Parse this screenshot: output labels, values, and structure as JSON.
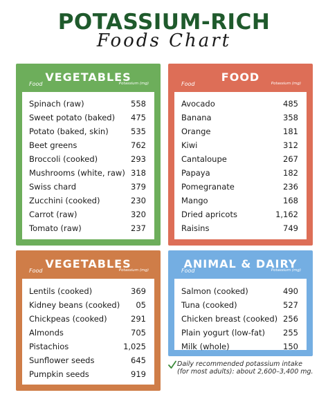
{
  "title": {
    "main": "POTASSIUM-RICH",
    "sub": "Foods Chart"
  },
  "sections": {
    "vegetables1": {
      "heading": "VEGETABLES",
      "col_food": "Food",
      "col_potassium": "Potassium (mg)",
      "rows": [
        {
          "food": "Spinach (raw)",
          "mg": "558"
        },
        {
          "food": "Sweet potato (baked)",
          "mg": "475"
        },
        {
          "food": "Potato (baked, skin)",
          "mg": "535"
        },
        {
          "food": "Beet greens",
          "mg": "762"
        },
        {
          "food": "Broccoli (cooked)",
          "mg": "293"
        },
        {
          "food": "Mushrooms (white, raw)",
          "mg": "318"
        },
        {
          "food": "Swiss chard",
          "mg": "379"
        },
        {
          "food": "Zucchini (cooked)",
          "mg": "230"
        },
        {
          "food": "Carrot (raw)",
          "mg": "320"
        },
        {
          "food": "Tomato (raw)",
          "mg": "237"
        }
      ]
    },
    "food": {
      "heading": "FOOD",
      "col_food": "Food",
      "col_potassium": "Potassium (mg)",
      "rows": [
        {
          "food": "Avocado",
          "mg": "485"
        },
        {
          "food": "Banana",
          "mg": "358"
        },
        {
          "food": "Orange",
          "mg": "181"
        },
        {
          "food": "Kiwi",
          "mg": "312"
        },
        {
          "food": "Cantaloupe",
          "mg": "267"
        },
        {
          "food": "Papaya",
          "mg": "182"
        },
        {
          "food": "Pomegranate",
          "mg": "236"
        },
        {
          "food": "Mango",
          "mg": "168"
        },
        {
          "food": "Dried apricots",
          "mg": "1,162"
        },
        {
          "food": "Raisins",
          "mg": "749"
        }
      ]
    },
    "vegetables2": {
      "heading": "VEGETABLES",
      "col_food": "Food",
      "col_potassium": "Potassium (mg)",
      "rows": [
        {
          "food": "Lentils (cooked)",
          "mg": "369"
        },
        {
          "food": "Kidney beans (cooked)",
          "mg": "05"
        },
        {
          "food": "Chickpeas (cooked)",
          "mg": "291"
        },
        {
          "food": "Almonds",
          "mg": "705"
        },
        {
          "food": "Pistachios",
          "mg": "1,025"
        },
        {
          "food": "Sunflower seeds",
          "mg": "645"
        },
        {
          "food": "Pumpkin seeds",
          "mg": "919"
        }
      ]
    },
    "animal_dairy": {
      "heading": "ANIMAL & DAIRY",
      "col_food": "Food",
      "col_potassium": "Potassium (mg)",
      "rows": [
        {
          "food": "Salmon (cooked)",
          "mg": "490"
        },
        {
          "food": "Tuna (cooked)",
          "mg": "527"
        },
        {
          "food": "Chicken breast (cooked)",
          "mg": "256"
        },
        {
          "food": "Plain yogurt (low-fat)",
          "mg": "255"
        },
        {
          "food": "Milk (whole)",
          "mg": "150"
        }
      ]
    }
  },
  "footnote": {
    "icon": "checkmark-icon",
    "line1": "Daily recommended potassium intake",
    "line2": "(for most adults): about 2,600–3,400 mg."
  },
  "colors": {
    "title": "#1f5a2c",
    "vegetables1": "#6dae5b",
    "food": "#dd6e57",
    "vegetables2": "#cf7d48",
    "animal_dairy": "#74aee2",
    "checkmark": "#3b8a3a"
  }
}
